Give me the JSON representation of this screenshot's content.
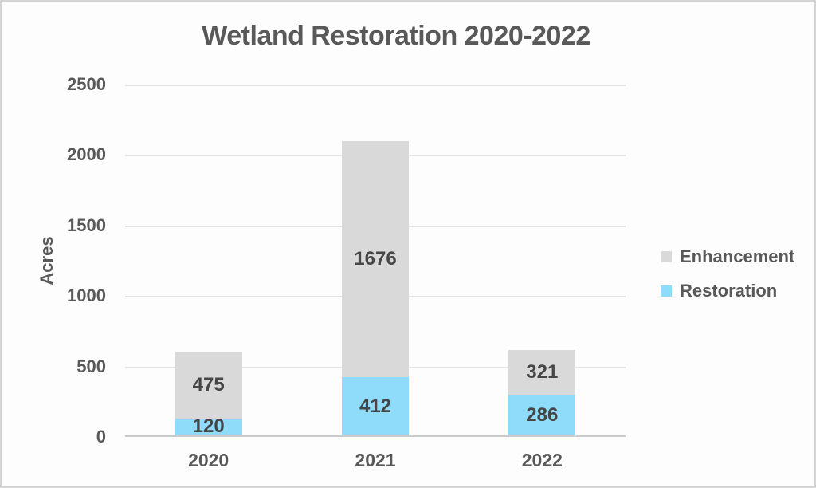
{
  "chart_data": {
    "type": "bar",
    "stacked": true,
    "title": "Wetland Restoration 2020-2022",
    "xlabel": "",
    "ylabel": "Acres",
    "categories": [
      "2020",
      "2021",
      "2022"
    ],
    "series": [
      {
        "name": "Restoration",
        "color": "#8edcfa",
        "values": [
          120,
          412,
          286
        ]
      },
      {
        "name": "Enhancement",
        "color": "#d9d9d9",
        "values": [
          475,
          1676,
          321
        ]
      }
    ],
    "data_labels": true,
    "ylim": [
      0,
      2500
    ],
    "yticks": [
      0,
      500,
      1000,
      1500,
      2000,
      2500
    ],
    "grid": true,
    "legend_position": "right",
    "legend": [
      {
        "label": "Enhancement",
        "color": "#d9d9d9"
      },
      {
        "label": "Restoration",
        "color": "#8edcfa"
      }
    ]
  },
  "colors": {
    "background": "#fdfdfd",
    "frame_border": "#d5d5d5",
    "gridline": "#e2e2e2",
    "axis_line": "#cbcbcb",
    "text": "#595959",
    "data_label_text": "#464646"
  }
}
